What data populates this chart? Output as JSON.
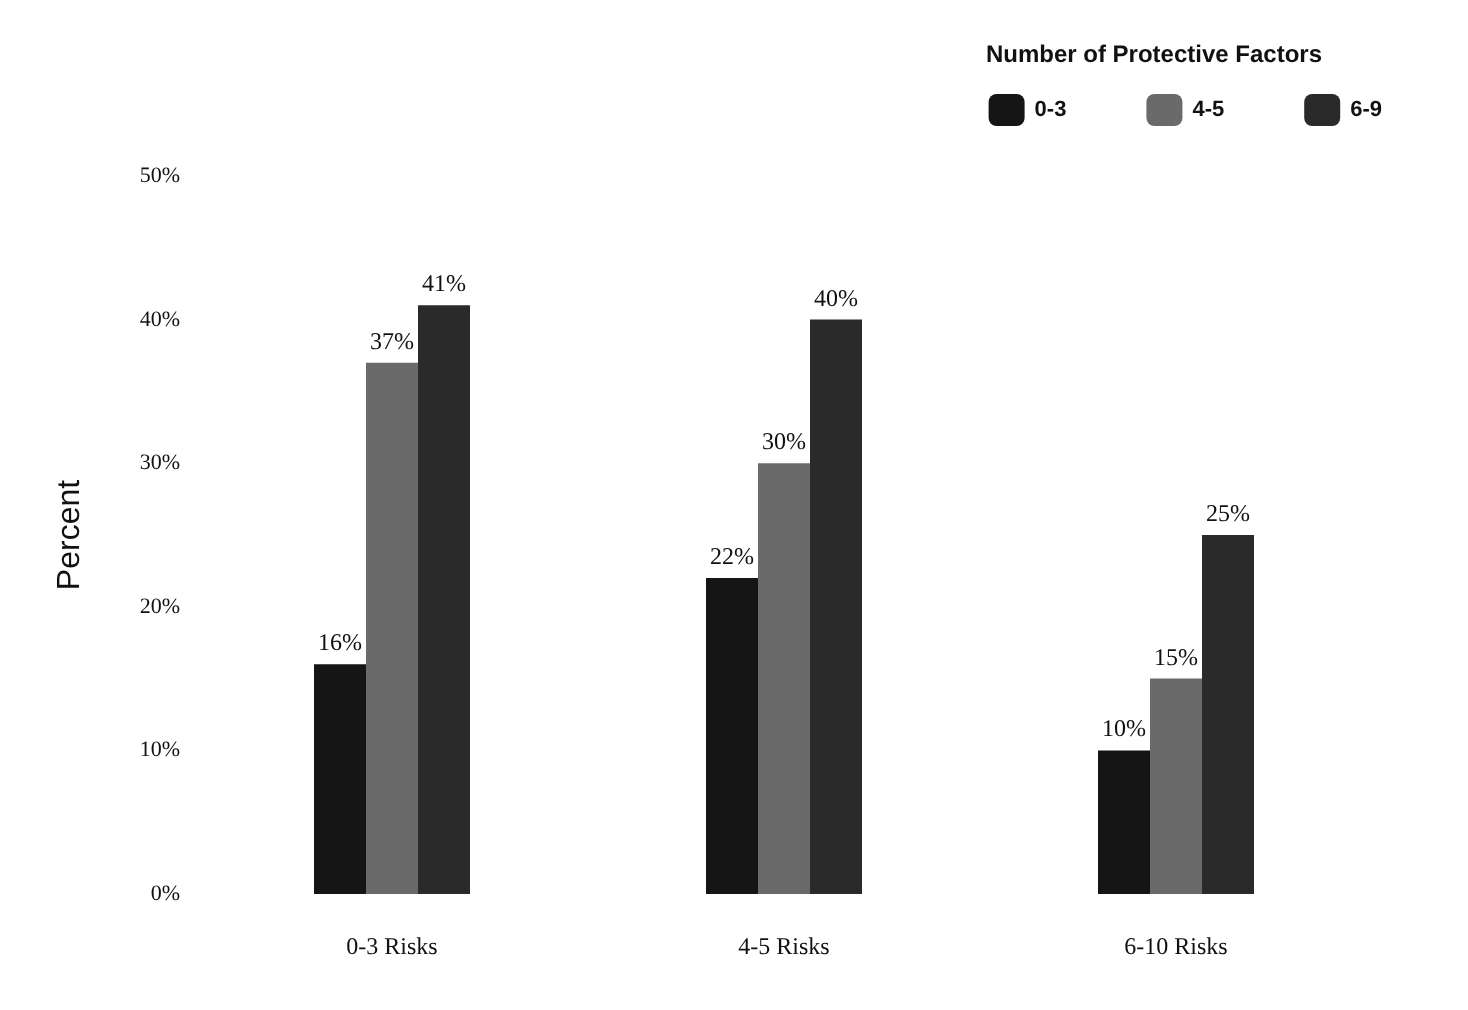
{
  "chart_data": {
    "type": "bar",
    "ylabel": "Percent",
    "legend_title": "Number of Protective Factors",
    "legend": "top right",
    "grid": false,
    "categories": [
      "0-3 Risks",
      "4-5 Risks",
      "6-10 Risks"
    ],
    "ylim": [
      0,
      50
    ],
    "yticks": [
      {
        "value": 0,
        "label": "0%"
      },
      {
        "value": 10,
        "label": "10%"
      },
      {
        "value": 20,
        "label": "20%"
      },
      {
        "value": 30,
        "label": "30%"
      },
      {
        "value": 40,
        "label": "40%"
      },
      {
        "value": 50,
        "label": "50%"
      }
    ],
    "series": [
      {
        "name": "0-3",
        "color": "#151515",
        "values": [
          16,
          22,
          10
        ],
        "value_labels": [
          "16%",
          "22%",
          "10%"
        ]
      },
      {
        "name": "4-5",
        "color": "#6a6a6a",
        "values": [
          37,
          30,
          15
        ],
        "value_labels": [
          "37%",
          "30%",
          "15%"
        ]
      },
      {
        "name": "6-9",
        "color": "#2a2a2a",
        "values": [
          41,
          40,
          25
        ],
        "value_labels": [
          "41%",
          "40%",
          "25%"
        ]
      }
    ]
  }
}
